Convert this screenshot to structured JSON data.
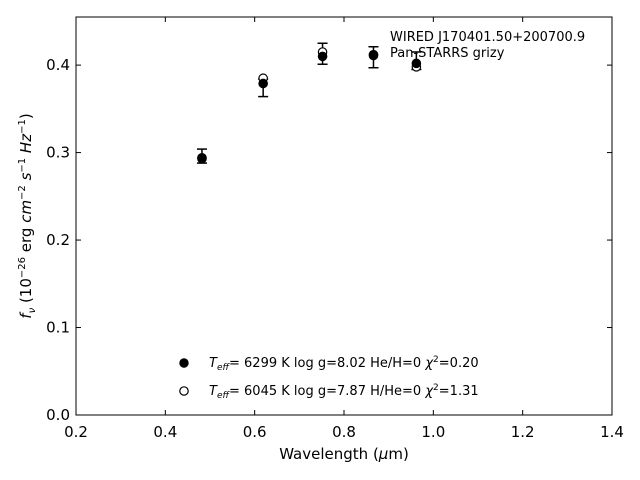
{
  "chart_data": {
    "type": "scatter",
    "title": "",
    "xlabel": "Wavelength (μm)",
    "ylabel": "f_ν (10^-26 erg cm^-2 s^-1 Hz^-1)",
    "xlim": [
      0.2,
      1.4
    ],
    "ylim": [
      0.0,
      0.455
    ],
    "x_ticks": [
      "0.2",
      "0.4",
      "0.6",
      "0.8",
      "1.0",
      "1.2",
      "1.4"
    ],
    "y_ticks": [
      "0.0",
      "0.1",
      "0.2",
      "0.3",
      "0.4"
    ],
    "grid": false,
    "annotation": [
      "WIRED J170401.50+200700.9",
      "Pan-STARRS grizy"
    ],
    "observed": {
      "x": [
        0.482,
        0.619,
        0.752,
        0.866,
        0.962
      ],
      "y": [
        0.296,
        0.374,
        0.413,
        0.409,
        0.405
      ],
      "yerr": [
        0.008,
        0.01,
        0.012,
        0.012,
        0.01
      ]
    },
    "series": [
      {
        "marker": "filled-circle",
        "values": [
          0.294,
          0.379,
          0.41,
          0.411,
          0.402
        ],
        "legend": {
          "teff": "6299 K",
          "logg": "log g=8.02",
          "comp": "He/H=0",
          "chi2": "=0.20"
        }
      },
      {
        "marker": "open-circle",
        "values": [
          0.293,
          0.385,
          0.415,
          0.412,
          0.398
        ],
        "legend": {
          "teff": "6045 K",
          "logg": "log g=7.87",
          "comp": "H/He=0",
          "chi2": "=1.31"
        }
      }
    ],
    "x": [
      0.482,
      0.619,
      0.752,
      0.866,
      0.962
    ]
  }
}
